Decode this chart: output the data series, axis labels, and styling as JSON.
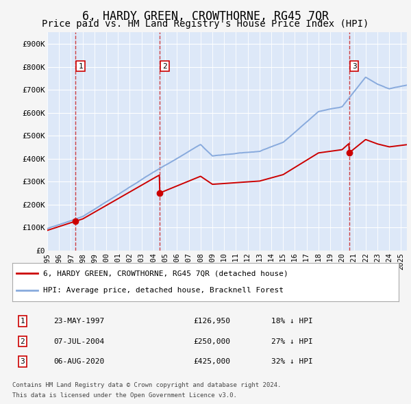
{
  "title": "6, HARDY GREEN, CROWTHORNE, RG45 7QR",
  "subtitle": "Price paid vs. HM Land Registry's House Price Index (HPI)",
  "ylim": [
    0,
    950000
  ],
  "yticks": [
    0,
    100000,
    200000,
    300000,
    400000,
    500000,
    600000,
    700000,
    800000,
    900000
  ],
  "ytick_labels": [
    "£0",
    "£100K",
    "£200K",
    "£300K",
    "£400K",
    "£500K",
    "£600K",
    "£700K",
    "£800K",
    "£900K"
  ],
  "fig_bg_color": "#f5f5f5",
  "plot_bg_color": "#dde8f8",
  "grid_color": "#ffffff",
  "sale_color": "#cc0000",
  "hpi_color": "#88aadd",
  "dashed_color": "#cc2222",
  "title_fontsize": 12,
  "subtitle_fontsize": 10,
  "legend_label_sale": "6, HARDY GREEN, CROWTHORNE, RG45 7QR (detached house)",
  "legend_label_hpi": "HPI: Average price, detached house, Bracknell Forest",
  "transactions": [
    {
      "num": 1,
      "date": "23-MAY-1997",
      "price": 126950,
      "pct": "18% ↓ HPI",
      "x_year": 1997.38
    },
    {
      "num": 2,
      "date": "07-JUL-2004",
      "price": 250000,
      "pct": "27% ↓ HPI",
      "x_year": 2004.52
    },
    {
      "num": 3,
      "date": "06-AUG-2020",
      "price": 425000,
      "pct": "32% ↓ HPI",
      "x_year": 2020.6
    }
  ],
  "footer_line1": "Contains HM Land Registry data © Crown copyright and database right 2024.",
  "footer_line2": "This data is licensed under the Open Government Licence v3.0.",
  "xmin": 1995.0,
  "xmax": 2025.5
}
